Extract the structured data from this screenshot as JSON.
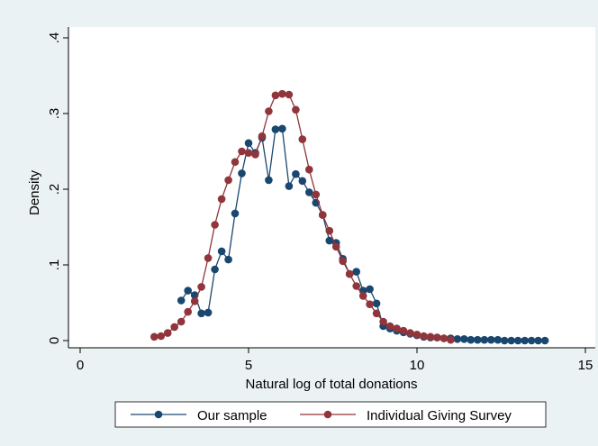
{
  "chart_data": {
    "type": "line",
    "xlabel": "Natural log of total donations",
    "ylabel": "Density",
    "xlim": [
      -0.2,
      15.3
    ],
    "ylim": [
      -0.01,
      0.415
    ],
    "xticks": [
      0,
      5,
      10,
      15
    ],
    "xtick_labels": [
      "0",
      "5",
      "10",
      "15"
    ],
    "yticks": [
      0,
      0.1,
      0.2,
      0.3,
      0.4
    ],
    "ytick_labels": [
      "0",
      ".1",
      ".2",
      ".3",
      ".4"
    ],
    "grid": false,
    "legend": {
      "position": "bottom",
      "entries": [
        "Our sample",
        "Individual Giving Survey"
      ]
    },
    "series": [
      {
        "name": "Our sample",
        "color": "#1a476f",
        "marker": "circle",
        "x": [
          3.0,
          3.2,
          3.4,
          3.6,
          3.8,
          4.0,
          4.2,
          4.4,
          4.6,
          4.8,
          5.0,
          5.2,
          5.4,
          5.6,
          5.8,
          6.0,
          6.2,
          6.4,
          6.6,
          6.8,
          7.0,
          7.2,
          7.4,
          7.6,
          7.8,
          8.0,
          8.2,
          8.4,
          8.6,
          8.8,
          9.0,
          9.2,
          9.4,
          9.6,
          9.8,
          10.0,
          10.2,
          10.4,
          10.6,
          10.8,
          11.0,
          11.2,
          11.4,
          11.6,
          11.8,
          12.0,
          12.2,
          12.4,
          12.6,
          12.8,
          13.0,
          13.2,
          13.4,
          13.6,
          13.8
        ],
        "y": [
          0.053,
          0.066,
          0.06,
          0.036,
          0.037,
          0.094,
          0.118,
          0.107,
          0.168,
          0.221,
          0.261,
          0.248,
          0.268,
          0.212,
          0.279,
          0.28,
          0.204,
          0.22,
          0.211,
          0.196,
          0.182,
          0.166,
          0.132,
          0.129,
          0.108,
          0.088,
          0.091,
          0.066,
          0.068,
          0.049,
          0.019,
          0.016,
          0.013,
          0.011,
          0.009,
          0.007,
          0.005,
          0.004,
          0.004,
          0.003,
          0.003,
          0.002,
          0.002,
          0.001,
          0.001,
          0.001,
          0.001,
          0.001,
          0.0,
          0.0,
          0.0,
          0.0,
          0.0,
          0.0,
          0.0
        ]
      },
      {
        "name": "Individual Giving Survey",
        "color": "#90353b",
        "marker": "circle",
        "x": [
          2.2,
          2.4,
          2.6,
          2.8,
          3.0,
          3.2,
          3.4,
          3.6,
          3.8,
          4.0,
          4.2,
          4.4,
          4.6,
          4.8,
          5.0,
          5.2,
          5.4,
          5.6,
          5.8,
          6.0,
          6.2,
          6.4,
          6.6,
          6.8,
          7.0,
          7.2,
          7.4,
          7.6,
          7.8,
          8.0,
          8.2,
          8.4,
          8.6,
          8.8,
          9.0,
          9.2,
          9.4,
          9.6,
          9.8,
          10.0,
          10.2,
          10.4,
          10.6,
          10.8,
          11.0
        ],
        "y": [
          0.005,
          0.006,
          0.01,
          0.018,
          0.025,
          0.038,
          0.052,
          0.071,
          0.109,
          0.153,
          0.187,
          0.212,
          0.236,
          0.25,
          0.248,
          0.246,
          0.27,
          0.303,
          0.324,
          0.326,
          0.325,
          0.305,
          0.266,
          0.226,
          0.193,
          0.166,
          0.145,
          0.124,
          0.105,
          0.088,
          0.072,
          0.059,
          0.048,
          0.036,
          0.025,
          0.019,
          0.016,
          0.013,
          0.01,
          0.008,
          0.006,
          0.005,
          0.004,
          0.003,
          0.001
        ]
      }
    ]
  }
}
